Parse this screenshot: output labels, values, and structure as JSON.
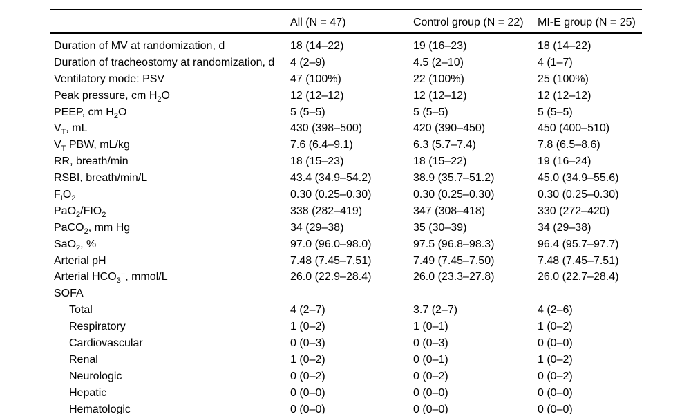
{
  "table": {
    "columns": [
      "",
      "All (N = 47)",
      "Control group (N = 22)",
      "MI-E group (N = 25)"
    ],
    "rows": [
      {
        "label": "Duration of MV at randomization, d",
        "indent": false,
        "values": [
          "18 (14–22)",
          "19 (16–23)",
          "18 (14–22)"
        ]
      },
      {
        "label": "Duration of tracheostomy at randomization, d",
        "indent": false,
        "values": [
          "4 (2–9)",
          "4.5 (2–10)",
          "4 (1–7)"
        ]
      },
      {
        "label": "Ventilatory mode: PSV",
        "indent": false,
        "values": [
          "47 (100%)",
          "22 (100%)",
          "25 (100%)"
        ]
      },
      {
        "label": "Peak pressure, cm H~2~O",
        "indent": false,
        "values": [
          "12 (12–12)",
          "12 (12–12)",
          "12 (12–12)"
        ]
      },
      {
        "label": "PEEP, cm H~2~O",
        "indent": false,
        "values": [
          "5 (5–5)",
          "5 (5–5)",
          "5 (5–5)"
        ]
      },
      {
        "label": "V~T~, mL",
        "indent": false,
        "values": [
          "430 (398–500)",
          "420 (390–450)",
          "450 (400–510)"
        ]
      },
      {
        "label": "V~T~ PBW, mL/kg",
        "indent": false,
        "values": [
          "7.6 (6.4–9.1)",
          "6.3 (5.7–7.4)",
          "7.8 (6.5–8.6)"
        ]
      },
      {
        "label": "RR, breath/min",
        "indent": false,
        "values": [
          "18 (15–23)",
          "18 (15–22)",
          "19 (16–24)"
        ]
      },
      {
        "label": "RSBI, breath/min/L",
        "indent": false,
        "values": [
          "43.4 (34.9–54.2)",
          "38.9 (35.7–51.2)",
          "45.0 (34.9–55.6)"
        ]
      },
      {
        "label": "F~I~O~2~",
        "indent": false,
        "values": [
          "0.30 (0.25–0.30)",
          "0.30 (0.25–0.30)",
          "0.30 (0.25–0.30)"
        ]
      },
      {
        "label": "PaO~2~/FIO~2~",
        "indent": false,
        "values": [
          "338 (282–419)",
          "347 (308–418)",
          "330 (272–420)"
        ]
      },
      {
        "label": "PaCO~2~, mm Hg",
        "indent": false,
        "values": [
          "34 (29–38)",
          "35 (30–39)",
          "34 (29–38)"
        ]
      },
      {
        "label": "SaO~2~, %",
        "indent": false,
        "values": [
          "97.0 (96.0–98.0)",
          "97.5 (96.8–98.3)",
          "96.4 (95.7–97.7)"
        ]
      },
      {
        "label": "Arterial pH",
        "indent": false,
        "values": [
          "7.48 (7.45–7,51)",
          "7.49 (7.45–7.50)",
          "7.48 (7.45–7.51)"
        ]
      },
      {
        "label": "Arterial HCO~3~^−^, mmol/L",
        "indent": false,
        "values": [
          "26.0 (22.9–28.4)",
          "26.0 (23.3–27.8)",
          "26.0 (22.7–28.4)"
        ]
      },
      {
        "label": "SOFA",
        "indent": false,
        "values": [
          "",
          "",
          ""
        ]
      },
      {
        "label": "Total",
        "indent": true,
        "values": [
          "4 (2–7)",
          "3.7 (2–7)",
          "4 (2–6)"
        ]
      },
      {
        "label": "Respiratory",
        "indent": true,
        "values": [
          "1 (0–2)",
          "1 (0–1)",
          "1 (0–2)"
        ]
      },
      {
        "label": "Cardiovascular",
        "indent": true,
        "values": [
          "0 (0–3)",
          "0 (0–3)",
          "0 (0–0)"
        ]
      },
      {
        "label": "Renal",
        "indent": true,
        "values": [
          "1 (0–2)",
          "0 (0–1)",
          "1 (0–2)"
        ]
      },
      {
        "label": "Neurologic",
        "indent": true,
        "values": [
          "0 (0–2)",
          "0 (0–2)",
          "0 (0–2)"
        ]
      },
      {
        "label": "Hepatic",
        "indent": true,
        "values": [
          "0 (0–0)",
          "0 (0–0)",
          "0 (0–0)"
        ]
      },
      {
        "label": "Hematologic",
        "indent": true,
        "values": [
          "0 (0–0)",
          "0 (0–0)",
          "0 (0–0)"
        ]
      }
    ]
  }
}
